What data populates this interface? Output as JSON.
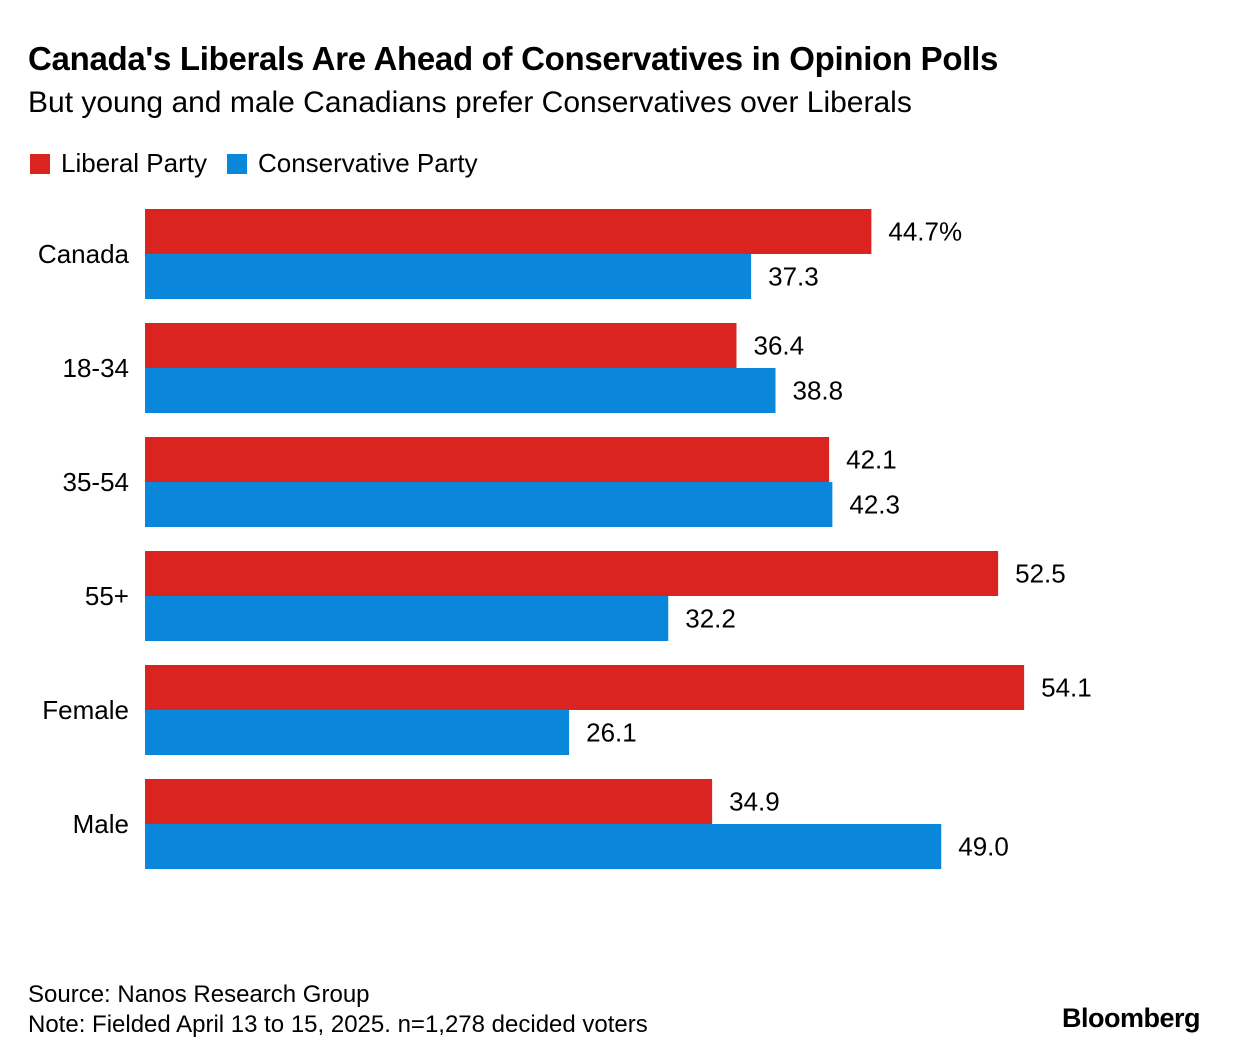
{
  "header": {
    "title": "Canada's Liberals Are Ahead of Conservatives in Opinion Polls",
    "subtitle": "But young and male Canadians prefer Conservatives over Liberals"
  },
  "footer": {
    "source": "Source: Nanos Research Group",
    "note": "Note: Fielded April 13 to 15, 2025. n=1,278 decided voters",
    "brand": "Bloomberg"
  },
  "colors": {
    "liberal": "#da2420",
    "conservative": "#0a86db"
  },
  "chart_data": {
    "type": "bar",
    "orientation": "horizontal",
    "categories": [
      "Canada",
      "18-34",
      "35-54",
      "55+",
      "Female",
      "Male"
    ],
    "series": [
      {
        "name": "Liberal Party",
        "values": [
          44.7,
          36.4,
          42.1,
          52.5,
          54.1,
          34.9
        ],
        "labels": [
          "44.7%",
          "36.4",
          "42.1",
          "52.5",
          "54.1",
          "34.9"
        ]
      },
      {
        "name": "Conservative Party",
        "values": [
          37.3,
          38.8,
          42.3,
          32.2,
          26.1,
          49.0
        ],
        "labels": [
          "37.3",
          "38.8",
          "42.3",
          "32.2",
          "26.1",
          "49.0"
        ]
      }
    ],
    "xlim": [
      0,
      60
    ],
    "grid": false,
    "legend": "top-left"
  }
}
